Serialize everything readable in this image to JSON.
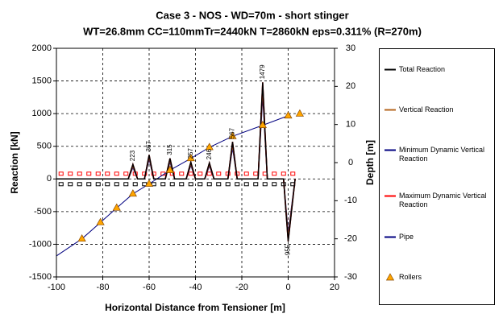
{
  "chart_data": {
    "type": "line",
    "title": "Case 3 - NOS - WD=70m - short stinger",
    "subtitle": "WT=26.8mm CC=110mmTr=2440kN T=2860kN eps=0.311%  (R=270m)",
    "x_label": "Horizontal Distance from Tensioner [m]",
    "y_label": "Reaction [kN]",
    "y2_label": "Depth [m]",
    "xlim": [
      -100,
      20
    ],
    "xticks": [
      -100,
      -80,
      -60,
      -40,
      -20,
      0,
      20
    ],
    "ylim": [
      -1500,
      2000
    ],
    "yticks": [
      -1500,
      -1000,
      -500,
      0,
      500,
      1000,
      1500,
      2000
    ],
    "y2lim": [
      -30,
      30
    ],
    "y2ticks": [
      -30,
      -20,
      -10,
      0,
      10,
      20,
      30
    ],
    "grid": true,
    "legend": "right",
    "series": [
      {
        "name": "Total Reaction",
        "color": "#000000",
        "style": "line",
        "x": [
          -100,
          -69,
          -67,
          -65,
          -62,
          -60,
          -58,
          -53,
          -51,
          -49,
          -44,
          -42,
          -40,
          -36,
          -34,
          -32,
          -26,
          -24,
          -22,
          -13,
          -11,
          -9,
          -2,
          0,
          3
        ],
        "values": [
          0,
          0,
          223,
          0,
          0,
          367,
          0,
          0,
          315,
          0,
          0,
          257,
          0,
          0,
          246,
          0,
          0,
          567,
          0,
          0,
          1479,
          0,
          0,
          -955,
          0
        ]
      },
      {
        "name": "Vertical Reaction",
        "color": "#b5651d",
        "style": "line",
        "x": [
          -100,
          -69,
          -67,
          -65,
          -62,
          -60,
          -58,
          -53,
          -51,
          -49,
          -44,
          -42,
          -40,
          -36,
          -34,
          -32,
          -26,
          -24,
          -22,
          -13,
          -11,
          -9,
          -2,
          0,
          3
        ],
        "values": [
          0,
          0,
          200,
          0,
          0,
          340,
          0,
          0,
          290,
          0,
          0,
          235,
          0,
          0,
          225,
          0,
          0,
          530,
          0,
          0,
          1390,
          0,
          0,
          -900,
          0
        ]
      },
      {
        "name": "Minimum Dynamic Vertical Reaction",
        "color": "#000080",
        "style": "line",
        "x": [
          -100,
          -69,
          -67,
          -65,
          -62,
          -60,
          -58,
          -53,
          -51,
          -49,
          -44,
          -42,
          -40,
          -36,
          -34,
          -32,
          -26,
          -24,
          -22,
          -13,
          -11,
          -9,
          -2,
          0,
          3
        ],
        "values": [
          0,
          0,
          180,
          0,
          0,
          310,
          0,
          0,
          265,
          0,
          0,
          215,
          0,
          0,
          205,
          0,
          0,
          490,
          0,
          0,
          1300,
          0,
          0,
          -850,
          0
        ]
      },
      {
        "name": "Maximum Dynamic Vertical Reaction",
        "color": "#ff0000",
        "style": "line",
        "x": [
          -100,
          -69,
          -67,
          -65,
          -62,
          -60,
          -58,
          -53,
          -51,
          -49,
          -44,
          -42,
          -40,
          -36,
          -34,
          -32,
          -26,
          -24,
          -22,
          -13,
          -11,
          -9,
          -2,
          0,
          3
        ],
        "values": [
          0,
          0,
          223,
          0,
          0,
          367,
          0,
          0,
          315,
          0,
          0,
          257,
          0,
          0,
          246,
          0,
          0,
          567,
          0,
          0,
          1479,
          0,
          0,
          -955,
          0
        ]
      },
      {
        "name": "Pipe",
        "color": "#000080",
        "style": "line",
        "axis": "y2",
        "x": [
          -100,
          -89,
          -81,
          -74,
          -67,
          -60,
          -51,
          -42,
          -34,
          -24,
          -11,
          0
        ],
        "values": [
          -24.5,
          -20,
          -15.7,
          -11.9,
          -8.2,
          -5.6,
          -2,
          1.1,
          4,
          6.9,
          9.8,
          12.3
        ]
      },
      {
        "name": "Rollers",
        "color": "#ffa500",
        "style": "triangle",
        "axis": "y2",
        "x": [
          -89,
          -81,
          -74,
          -67,
          -60,
          -51,
          -42,
          -34,
          -24,
          -11,
          0,
          5
        ],
        "values": [
          -20,
          -15.7,
          -11.9,
          -8.2,
          -5.6,
          -2,
          1.1,
          4,
          6.9,
          9.8,
          12.3,
          12.8
        ]
      }
    ],
    "dynamic_limits": {
      "x": [
        -98,
        -94,
        -90,
        -86,
        -82,
        -78,
        -74,
        -70,
        -66,
        -62,
        -58,
        -54,
        -50,
        -46,
        -42,
        -38,
        -34,
        -30,
        -26,
        -22,
        -18,
        -14,
        -10,
        -6,
        -2,
        2
      ],
      "upper": [
        80,
        80,
        80,
        80,
        80,
        80,
        80,
        80,
        80,
        80,
        80,
        80,
        80,
        80,
        80,
        80,
        80,
        80,
        80,
        80,
        80,
        80,
        80,
        80,
        80,
        80
      ],
      "lower": [
        -80,
        -80,
        -80,
        -80,
        -80,
        -80,
        -80,
        -80,
        -80,
        -80,
        -80,
        -80,
        -80,
        -80,
        -80,
        -80,
        -80,
        -80,
        -80,
        -80,
        -80,
        -80,
        -80,
        -80,
        -80,
        -80
      ]
    },
    "annotations": [
      {
        "x": -67,
        "y": 223,
        "label": "223",
        "color": "#ff0000"
      },
      {
        "x": -60,
        "y": 367,
        "label": "367",
        "color": "#ff0000"
      },
      {
        "x": -51,
        "y": 315,
        "label": "315",
        "color": "#ff0000"
      },
      {
        "x": -42,
        "y": 257,
        "label": "257",
        "color": "#ff0000"
      },
      {
        "x": -34,
        "y": 246,
        "label": "246",
        "color": "#ff0000"
      },
      {
        "x": -24,
        "y": 567,
        "label": "567",
        "color": "#ff0000"
      },
      {
        "x": -11,
        "y": 1479,
        "label": "1479",
        "color": "#ff0000"
      },
      {
        "x": 0,
        "y": -955,
        "label": "-955",
        "color": "#000000"
      }
    ]
  }
}
